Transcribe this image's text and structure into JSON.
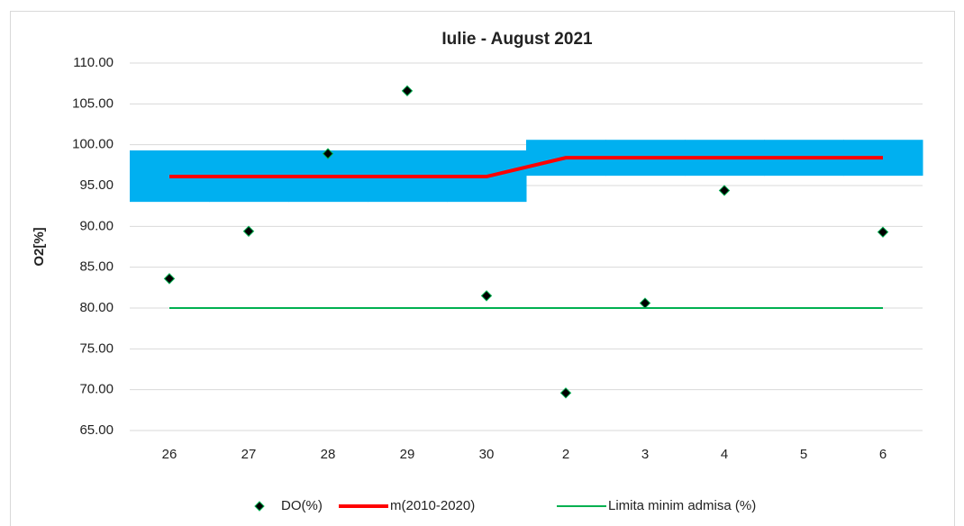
{
  "chart_data": {
    "type": "line",
    "title": "Iulie - August  2021",
    "y_label": "O2[%]",
    "categories": [
      "26",
      "27",
      "28",
      "29",
      "30",
      "2",
      "3",
      "4",
      "5",
      "6"
    ],
    "ylim": [
      65,
      110
    ],
    "yticks": [
      {
        "value": 65,
        "label": "65.00"
      },
      {
        "value": 70,
        "label": "70.00"
      },
      {
        "value": 75,
        "label": "75.00"
      },
      {
        "value": 80,
        "label": "80.00"
      },
      {
        "value": 85,
        "label": "85.00"
      },
      {
        "value": 90,
        "label": "90.00"
      },
      {
        "value": 95,
        "label": "95.00"
      },
      {
        "value": 100,
        "label": "100.00"
      },
      {
        "value": 105,
        "label": "105.00"
      },
      {
        "value": 110,
        "label": "110.00"
      }
    ],
    "grid": true,
    "legend": "bottom",
    "band": {
      "color": "#00b0f0",
      "low": [
        93.0,
        93.0,
        93.0,
        93.0,
        93.0,
        96.2,
        96.2,
        96.2,
        96.2,
        96.2
      ],
      "high": [
        99.3,
        99.3,
        99.3,
        99.3,
        99.3,
        100.6,
        100.6,
        100.6,
        100.6,
        100.6
      ]
    },
    "series": [
      {
        "name": "DO(%)",
        "color": "#000000",
        "marker": "diamond",
        "values": [
          83.6,
          89.4,
          98.9,
          106.6,
          81.5,
          69.6,
          80.6,
          94.4,
          null,
          89.3
        ]
      },
      {
        "name": "m(2010-2020)",
        "color": "#ff0000",
        "values": [
          96.1,
          96.1,
          96.1,
          96.1,
          96.1,
          98.4,
          98.4,
          98.4,
          98.4,
          98.4
        ]
      },
      {
        "name": "Limita minim admisa (%)",
        "color": "#00b050",
        "values": [
          80,
          80,
          80,
          80,
          80,
          80,
          80,
          80,
          80,
          80
        ]
      }
    ]
  }
}
